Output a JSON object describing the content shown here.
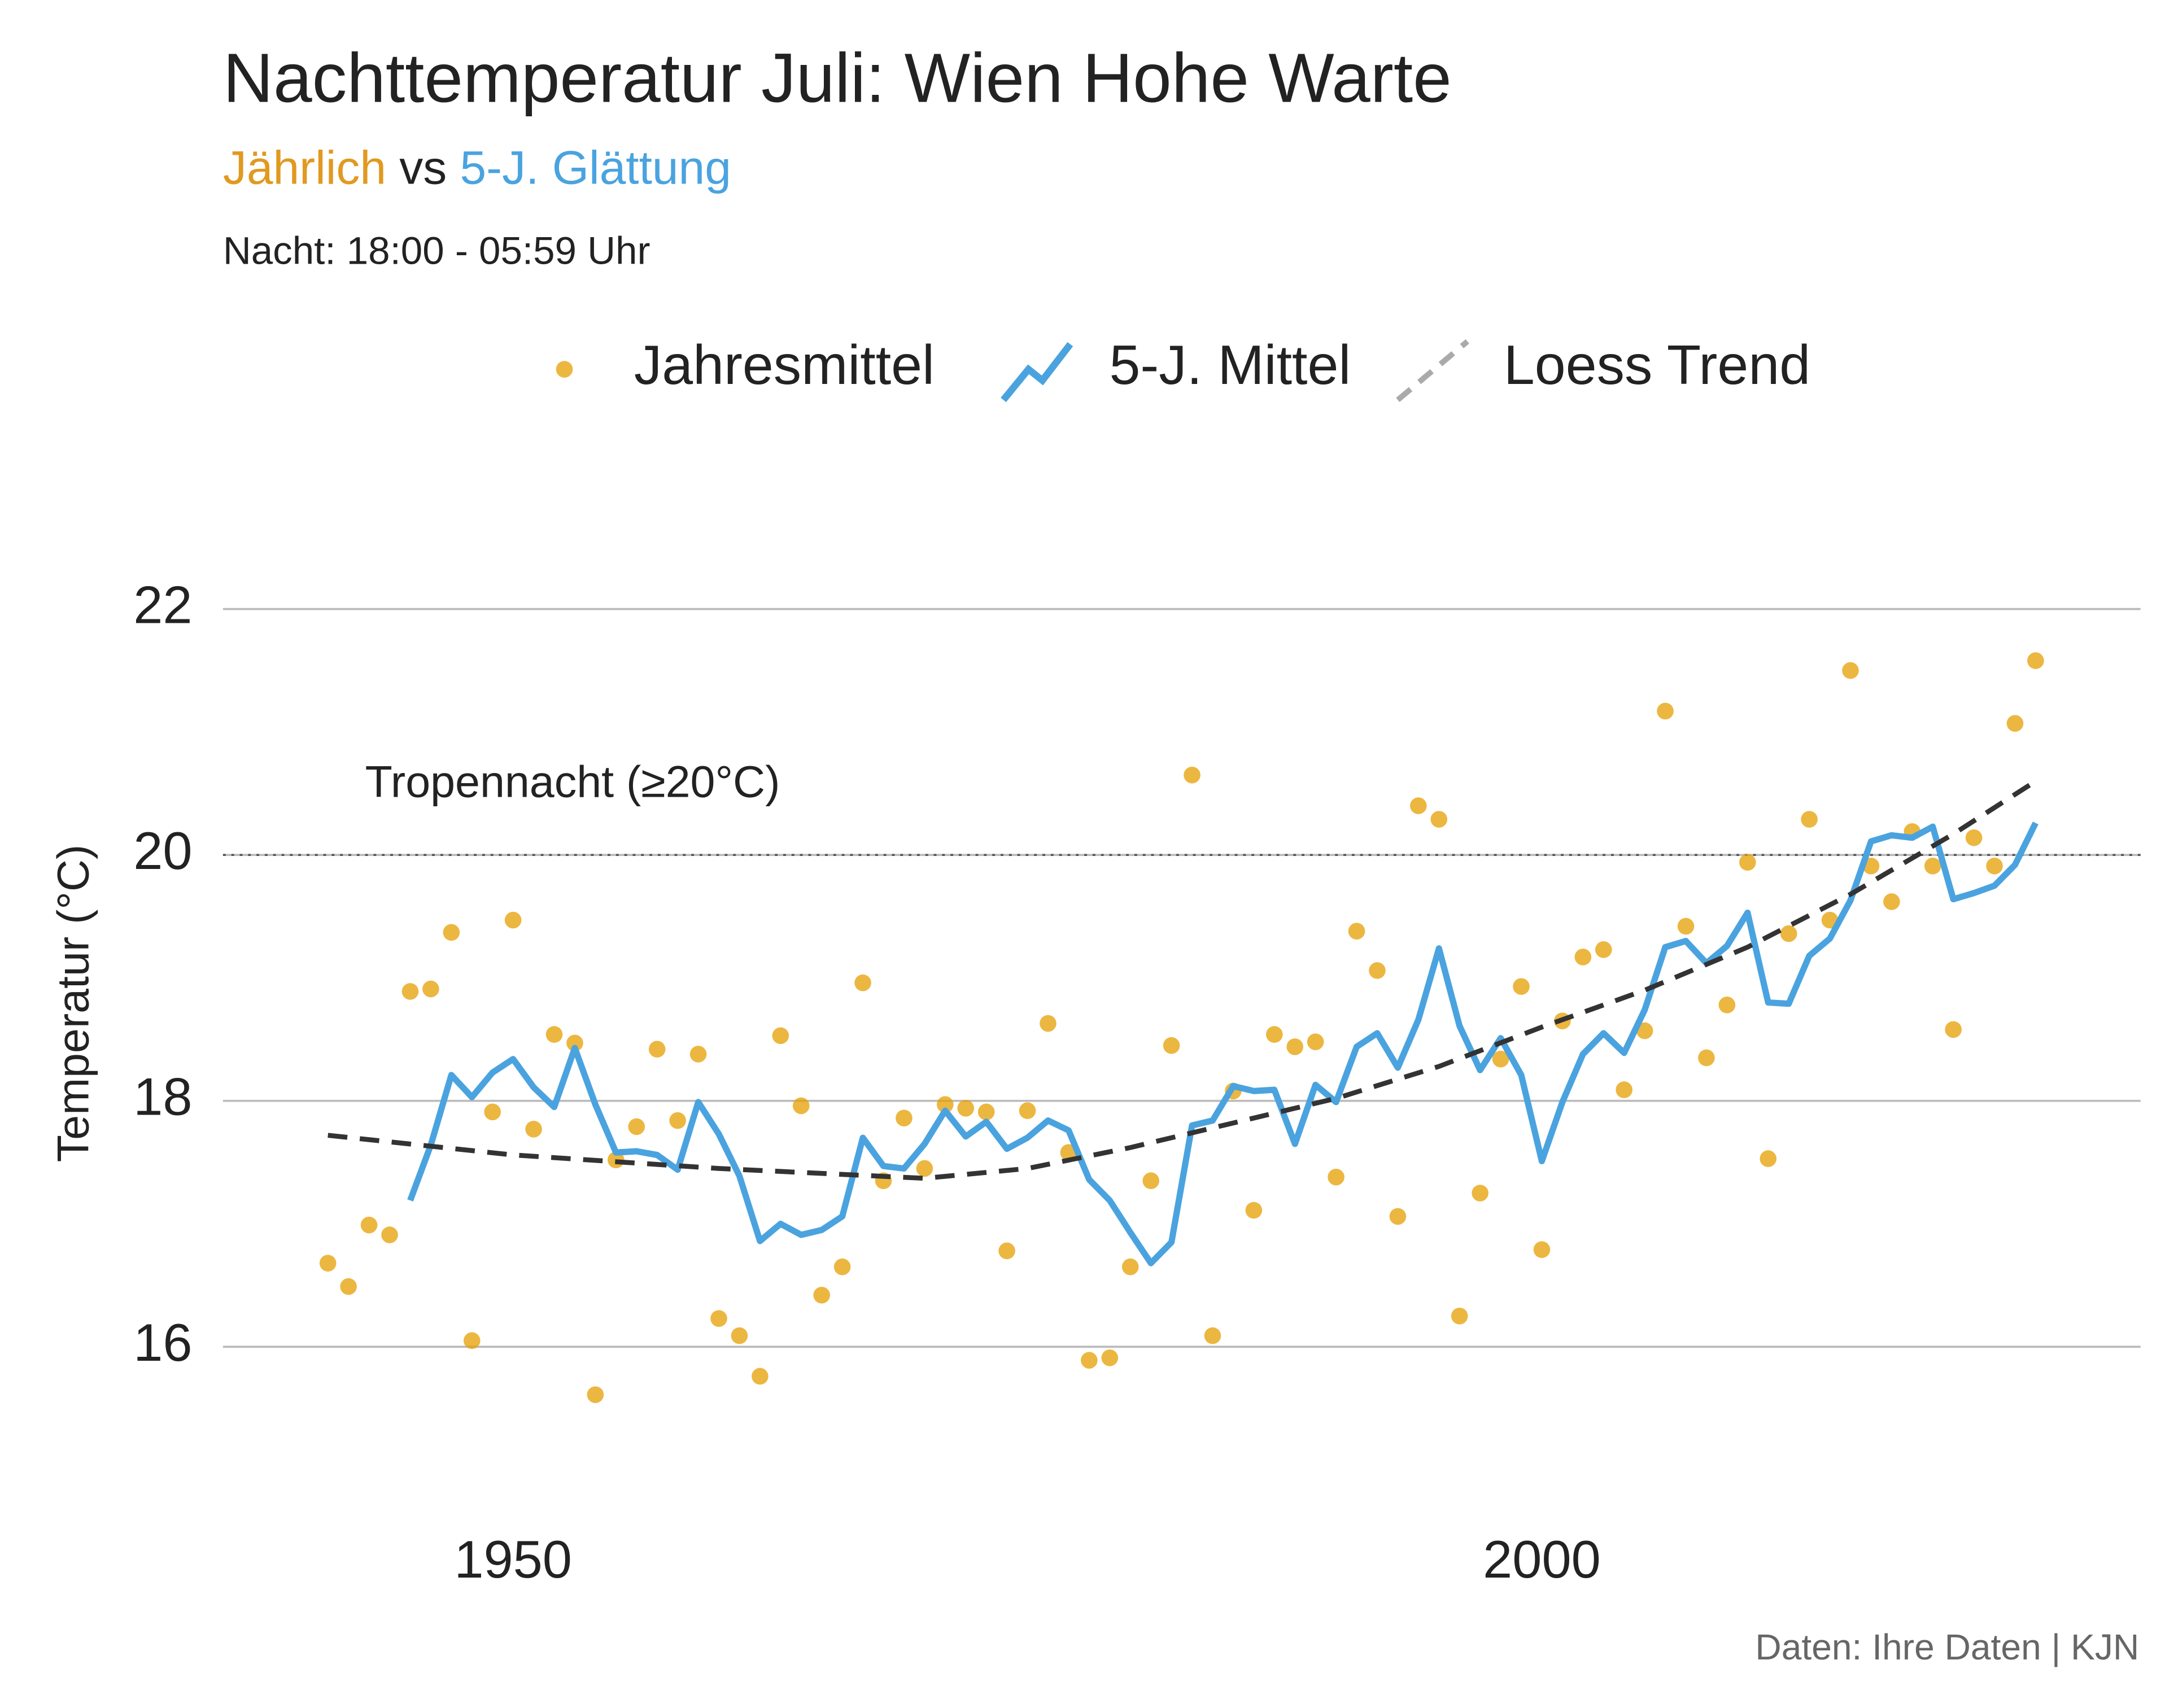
{
  "chart_data": {
    "type": "line",
    "title": "Nachttemperatur Juli: Wien Hohe Warte",
    "subtitle": [
      {
        "text": "Jährlich",
        "color": "#e09a20"
      },
      {
        "text": " vs ",
        "color": "#222222"
      },
      {
        "text": "5-J. Glättung",
        "color": "#4aa3df"
      }
    ],
    "note": "Nacht: 18:00 - 05:59 Uhr",
    "caption": "Daten: Ihre Daten | KJN",
    "y_label": "Temperatur (°C)",
    "legend": "top",
    "grid": true,
    "x": [
      1941,
      1942,
      1943,
      1944,
      1945,
      1946,
      1947,
      1948,
      1949,
      1950,
      1951,
      1952,
      1953,
      1954,
      1955,
      1956,
      1957,
      1958,
      1959,
      1960,
      1961,
      1962,
      1963,
      1964,
      1965,
      1966,
      1967,
      1968,
      1969,
      1970,
      1971,
      1972,
      1973,
      1974,
      1975,
      1976,
      1977,
      1978,
      1979,
      1980,
      1981,
      1982,
      1983,
      1984,
      1985,
      1986,
      1987,
      1988,
      1989,
      1990,
      1991,
      1992,
      1993,
      1994,
      1995,
      1996,
      1997,
      1998,
      1999,
      2000,
      2001,
      2002,
      2003,
      2004,
      2005,
      2006,
      2007,
      2008,
      2009,
      2010,
      2011,
      2012,
      2013,
      2014,
      2015,
      2016,
      2017,
      2018,
      2019,
      2020,
      2021,
      2022,
      2023,
      2024
    ],
    "series": [
      {
        "name": "Jahresmittel",
        "kind": "points",
        "color": "#e69f00",
        "values": [
          16.68,
          16.49,
          16.99,
          16.91,
          18.89,
          18.91,
          19.37,
          16.05,
          17.91,
          19.47,
          17.77,
          18.54,
          18.47,
          15.61,
          17.52,
          17.79,
          18.42,
          17.84,
          18.38,
          16.23,
          16.09,
          15.76,
          18.53,
          17.96,
          16.42,
          16.65,
          18.96,
          17.35,
          17.86,
          17.45,
          17.97,
          17.94,
          17.91,
          16.78,
          17.92,
          18.63,
          17.58,
          15.89,
          15.91,
          16.65,
          17.35,
          18.45,
          20.65,
          16.09,
          18.08,
          17.11,
          18.54,
          18.44,
          18.48,
          17.38,
          19.38,
          19.06,
          17.06,
          20.4,
          20.29,
          16.25,
          17.25,
          18.34,
          18.93,
          16.79,
          18.65,
          19.17,
          19.23,
          18.09,
          18.57,
          21.17,
          19.42,
          18.35,
          18.78,
          19.94,
          17.53,
          19.36,
          20.29,
          19.47,
          21.5,
          19.91,
          19.62,
          20.19,
          19.91,
          18.58,
          20.14,
          19.91,
          21.07,
          21.58
        ]
      },
      {
        "name": "5-J. Mittel",
        "kind": "line",
        "color": "#4aa3df",
        "values": [
          null,
          null,
          null,
          null,
          17.19,
          17.64,
          18.21,
          18.03,
          18.23,
          18.34,
          18.11,
          17.95,
          18.43,
          17.97,
          17.58,
          17.59,
          17.56,
          17.44,
          17.99,
          17.73,
          17.39,
          16.86,
          17.0,
          16.91,
          16.95,
          17.06,
          17.7,
          17.47,
          17.45,
          17.65,
          17.92,
          17.71,
          17.83,
          17.61,
          17.7,
          17.84,
          17.76,
          17.36,
          17.19,
          16.93,
          16.68,
          16.85,
          17.8,
          17.84,
          18.12,
          18.08,
          18.09,
          17.65,
          18.13,
          17.99,
          18.44,
          18.55,
          18.27,
          18.66,
          19.24,
          18.61,
          18.25,
          18.51,
          18.21,
          17.51,
          17.99,
          18.38,
          18.55,
          18.39,
          18.74,
          19.25,
          19.3,
          19.12,
          19.26,
          19.53,
          18.8,
          18.79,
          19.18,
          19.32,
          19.63,
          20.11,
          20.16,
          20.14,
          20.23,
          19.64,
          19.69,
          19.75,
          19.92,
          20.26
        ]
      },
      {
        "name": "Loess Trend",
        "kind": "dashed",
        "color": "#333333",
        "x": [
          1941,
          1950,
          1960,
          1970,
          1975,
          1980,
          1985,
          1990,
          1995,
          2000,
          2005,
          2010,
          2015,
          2020,
          2024
        ],
        "values": [
          17.72,
          17.56,
          17.45,
          17.37,
          17.45,
          17.62,
          17.82,
          18.02,
          18.28,
          18.6,
          18.9,
          19.25,
          19.68,
          20.17,
          20.6
        ]
      }
    ],
    "reference_line": {
      "value": 20,
      "label": "Tropennacht (≥20°C)"
    },
    "xlim": [
      1935.9,
      2029.1
    ],
    "xticks": [
      1950,
      2000
    ],
    "ylim": [
      14.6,
      23.1
    ],
    "yticks": [
      16,
      18,
      20,
      22
    ]
  }
}
